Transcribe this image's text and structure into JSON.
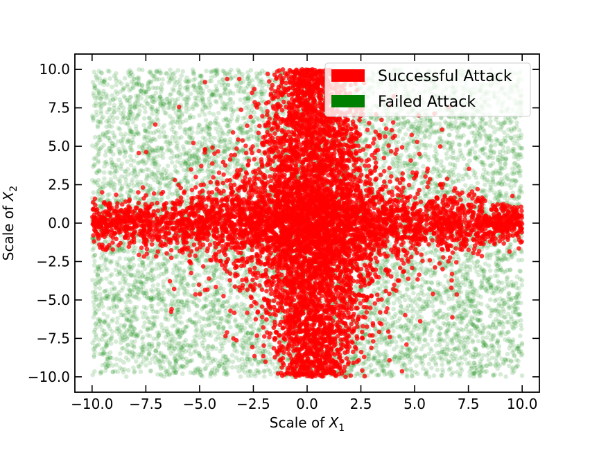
{
  "chart_data": {
    "type": "scatter",
    "title": "",
    "xlabel": {
      "prefix": "Scale of ",
      "var": "X",
      "sub": "1"
    },
    "ylabel": {
      "prefix": "Scale of ",
      "var": "X",
      "sub": "2"
    },
    "xlim": [
      -10.8,
      10.8
    ],
    "ylim": [
      -11.0,
      11.0
    ],
    "xticks": [
      -10.0,
      -7.5,
      -5.0,
      -2.5,
      0.0,
      2.5,
      5.0,
      7.5,
      10.0
    ],
    "yticks": [
      -10.0,
      -7.5,
      -5.0,
      -2.5,
      0.0,
      2.5,
      5.0,
      7.5,
      10.0
    ],
    "xtick_labels": [
      "−10.0",
      "−7.5",
      "−5.0",
      "−2.5",
      "0.0",
      "2.5",
      "5.0",
      "7.5",
      "10.0"
    ],
    "ytick_labels": [
      "−10.0",
      "−7.5",
      "−5.0",
      "−2.5",
      "0.0",
      "2.5",
      "5.0",
      "7.5",
      "10.0"
    ],
    "grid": false,
    "legend_position": "top-right",
    "series": [
      {
        "name": "Failed Attack",
        "color": "#008000",
        "x_range": [
          -10.0,
          10.0
        ],
        "y_range": [
          -10.0,
          10.0
        ],
        "distribution": "uniform over the full square"
      },
      {
        "name": "Successful Attack",
        "color": "#ff0000",
        "distribution": "cross-shaped cluster: vertical band near x=0 spanning y -10 to 10, horizontal band near y=0 spanning x -10 to 10",
        "vertical_band": {
          "x_center": 0.3,
          "x_halfwidth_at_center": 3.2,
          "y_range": [
            -10.0,
            10.0
          ]
        },
        "horizontal_band": {
          "y_center": 0.0,
          "y_halfwidth": 2.5,
          "x_range": [
            -10.0,
            10.0
          ]
        }
      }
    ],
    "legend": [
      {
        "label": "Successful Attack",
        "color": "#ff0000"
      },
      {
        "label": "Failed Attack",
        "color": "#008000"
      }
    ]
  }
}
